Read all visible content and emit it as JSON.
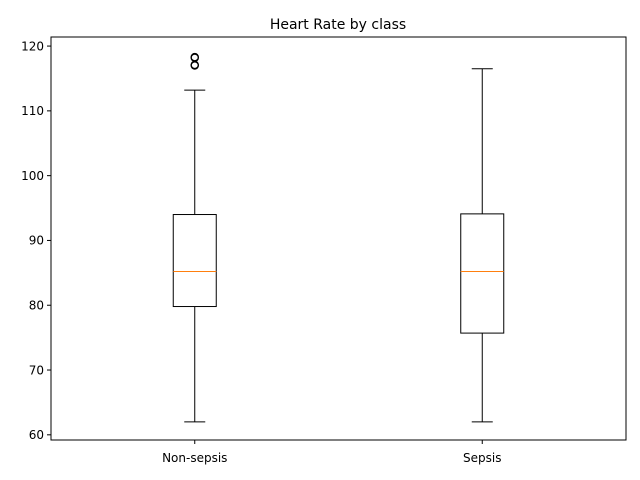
{
  "chart_data": {
    "type": "box",
    "title": "Heart Rate by class",
    "xlabel": "",
    "ylabel": "",
    "ylim": [
      59.2,
      121.4
    ],
    "yticks": [
      60,
      70,
      80,
      90,
      100,
      110,
      120
    ],
    "grid": false,
    "colors": {
      "box": "#000000",
      "median": "#ff7f0e"
    },
    "categories": [
      "Non-sepsis",
      "Sepsis"
    ],
    "boxes": [
      {
        "name": "Non-sepsis",
        "whisker_low": 62,
        "q1": 79.8,
        "median": 85.2,
        "q3": 94,
        "whisker_high": 113.2,
        "outliers": [
          117,
          117.1,
          118.2,
          118.3
        ]
      },
      {
        "name": "Sepsis",
        "whisker_low": 62,
        "q1": 75.7,
        "median": 85.2,
        "q3": 94.1,
        "whisker_high": 116.5,
        "outliers": []
      }
    ]
  }
}
